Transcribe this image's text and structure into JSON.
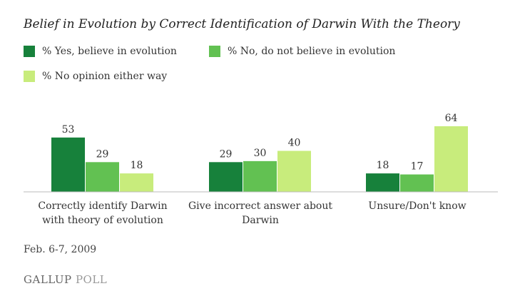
{
  "chart_data": {
    "type": "bar",
    "title": "Belief in Evolution by Correct Identification of Darwin With the Theory",
    "categories": [
      [
        "Correctly identify Darwin",
        "with theory of evolution"
      ],
      [
        "Give incorrect answer about",
        "Darwin"
      ],
      [
        "Unsure/Don't know"
      ]
    ],
    "series": [
      {
        "name": "% Yes, believe in evolution",
        "color": "#17813b",
        "values": [
          53,
          29,
          18
        ]
      },
      {
        "name": "% No, do not believe in evolution",
        "color": "#62c152",
        "values": [
          29,
          30,
          17
        ]
      },
      {
        "name": "% No opinion either way",
        "color": "#c8ec7c",
        "values": [
          18,
          40,
          64
        ]
      }
    ],
    "ylim": [
      0,
      64
    ],
    "grid": false,
    "legend_position": "top-left",
    "footnote": "Feb. 6-7, 2009"
  },
  "source": {
    "logo_main": "GALLUP",
    "logo_sub": "POLL"
  }
}
